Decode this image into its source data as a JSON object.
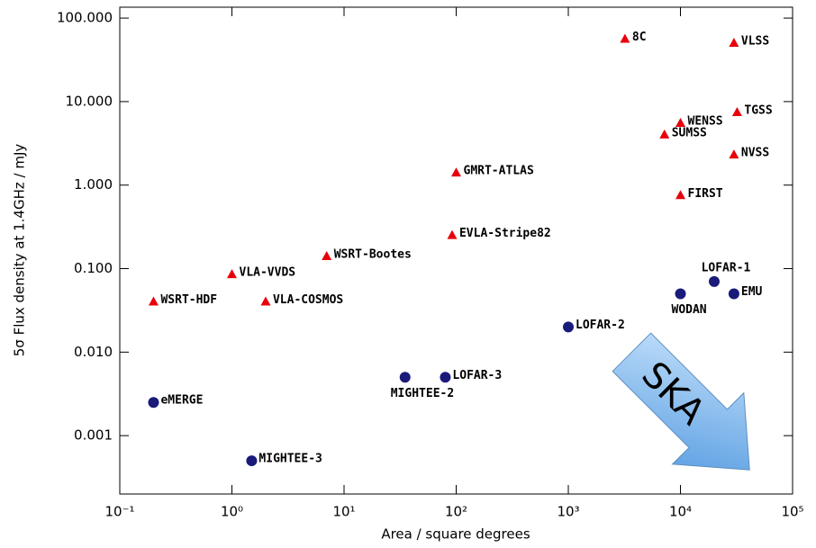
{
  "chart_data": {
    "type": "scatter",
    "x_label": "Area / square degrees",
    "y_label": "5σ Flux density at 1.4GHz / mJy",
    "xscale": "log",
    "yscale": "log",
    "xlim": [
      0.1,
      100000
    ],
    "ylim": [
      0.0002,
      135
    ],
    "xticks": [
      {
        "value": 0.1,
        "label": "10⁻¹"
      },
      {
        "value": 1,
        "label": "10⁰"
      },
      {
        "value": 10,
        "label": "10¹"
      },
      {
        "value": 100,
        "label": "10²"
      },
      {
        "value": 1000,
        "label": "10³"
      },
      {
        "value": 10000,
        "label": "10⁴"
      },
      {
        "value": 100000,
        "label": "10⁵"
      }
    ],
    "yticks": [
      {
        "value": 0.001,
        "label": "0.001"
      },
      {
        "value": 0.01,
        "label": "0.010"
      },
      {
        "value": 0.1,
        "label": "0.100"
      },
      {
        "value": 1,
        "label": "1.000"
      },
      {
        "value": 10,
        "label": "10.000"
      },
      {
        "value": 100,
        "label": "100.000"
      }
    ],
    "annotations": [
      "SKA"
    ],
    "series": [
      {
        "marker": "triangle",
        "color": "#e8000b",
        "x": [
          3200,
          30000,
          32000,
          10000,
          7200,
          30000,
          10000,
          100,
          92,
          7,
          1,
          0.2,
          2
        ],
        "values": [
          56,
          50,
          7.4,
          5.5,
          4,
          2.3,
          0.75,
          1.4,
          0.25,
          0.14,
          0.085,
          0.04,
          0.04
        ],
        "labels": [
          "8C",
          "VLSS",
          "TGSS",
          "WENSS",
          "SUMSS",
          "NVSS",
          "FIRST",
          "GMRT-ATLAS",
          "EVLA-Stripe82",
          "WSRT-Bootes",
          "VLA-VVDS",
          "WSRT-HDF",
          "VLA-COSMOS"
        ]
      },
      {
        "marker": "circle",
        "color": "#1a1a7a",
        "x": [
          20000,
          30000,
          10000,
          1000,
          80,
          35,
          0.2,
          1.5
        ],
        "values": [
          0.07,
          0.05,
          0.05,
          0.02,
          0.005,
          0.005,
          0.0025,
          0.0005
        ],
        "labels": [
          "LOFAR-1",
          "EMU",
          "WODAN",
          "LOFAR-2",
          "LOFAR-3",
          "MIGHTEE-2",
          "eMERGE",
          "MIGHTEE-3"
        ]
      }
    ]
  }
}
